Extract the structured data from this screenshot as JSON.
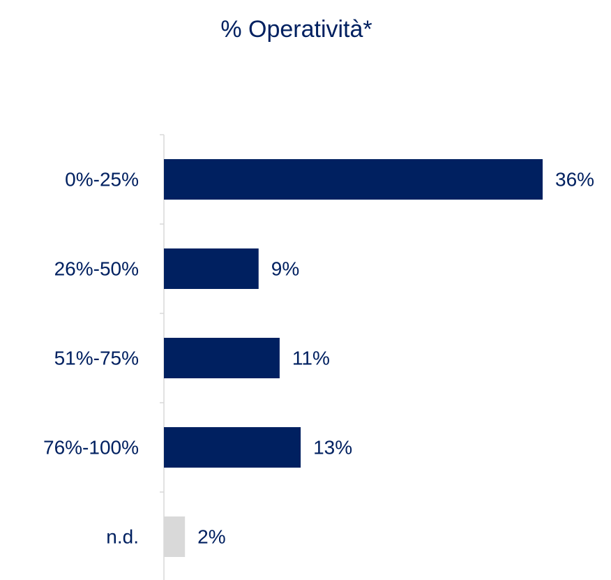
{
  "chart_data": {
    "type": "barh",
    "title": "% Operatività*",
    "categories": [
      "0%-25%",
      "26%-50%",
      "51%-75%",
      "76%-100%",
      "n.d."
    ],
    "values": [
      36,
      9,
      11,
      13,
      2
    ],
    "value_labels": [
      "36%",
      "9%",
      "11%",
      "13%",
      "2%"
    ],
    "colors": [
      "#002060",
      "#002060",
      "#002060",
      "#002060",
      "#d9d9d9"
    ]
  }
}
